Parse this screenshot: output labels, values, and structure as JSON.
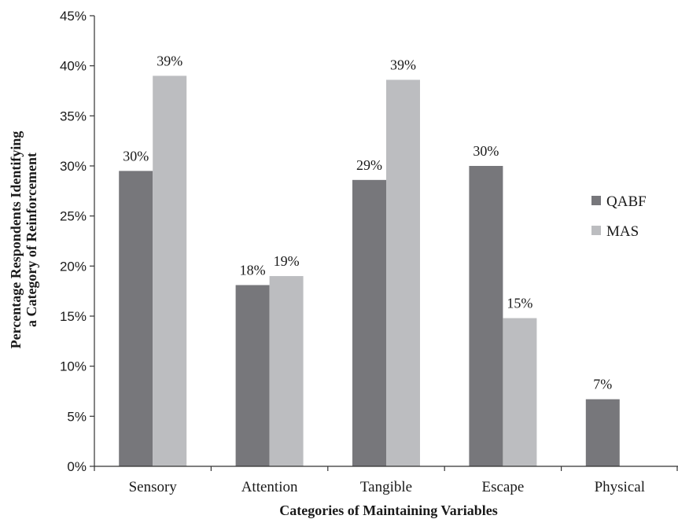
{
  "chart_data": {
    "type": "bar",
    "categories": [
      "Sensory",
      "Attention",
      "Tangible",
      "Escape",
      "Physical"
    ],
    "series": [
      {
        "name": "QABF",
        "color": "#77777b",
        "values": [
          29.5,
          18.1,
          28.6,
          30.0,
          6.7
        ],
        "labels": [
          "30%",
          "18%",
          "29%",
          "30%",
          "7%"
        ]
      },
      {
        "name": "MAS",
        "color": "#bcbdc0",
        "values": [
          39.0,
          19.0,
          38.6,
          14.8,
          null
        ],
        "labels": [
          "39%",
          "19%",
          "39%",
          "15%",
          null
        ]
      }
    ],
    "title": "",
    "xlabel": "Categories of Maintaining Variables",
    "ylabel_lines": [
      "Percentage Respondents Identifying",
      "a Category of Reinforcement"
    ],
    "ylim": [
      0,
      45
    ],
    "yticks": [
      0,
      5,
      10,
      15,
      20,
      25,
      30,
      35,
      40,
      45
    ],
    "ytick_labels": [
      "0%",
      "5%",
      "10%",
      "15%",
      "20%",
      "25%",
      "30%",
      "35%",
      "40%",
      "45%"
    ],
    "grid": false,
    "legend_position": "right"
  }
}
